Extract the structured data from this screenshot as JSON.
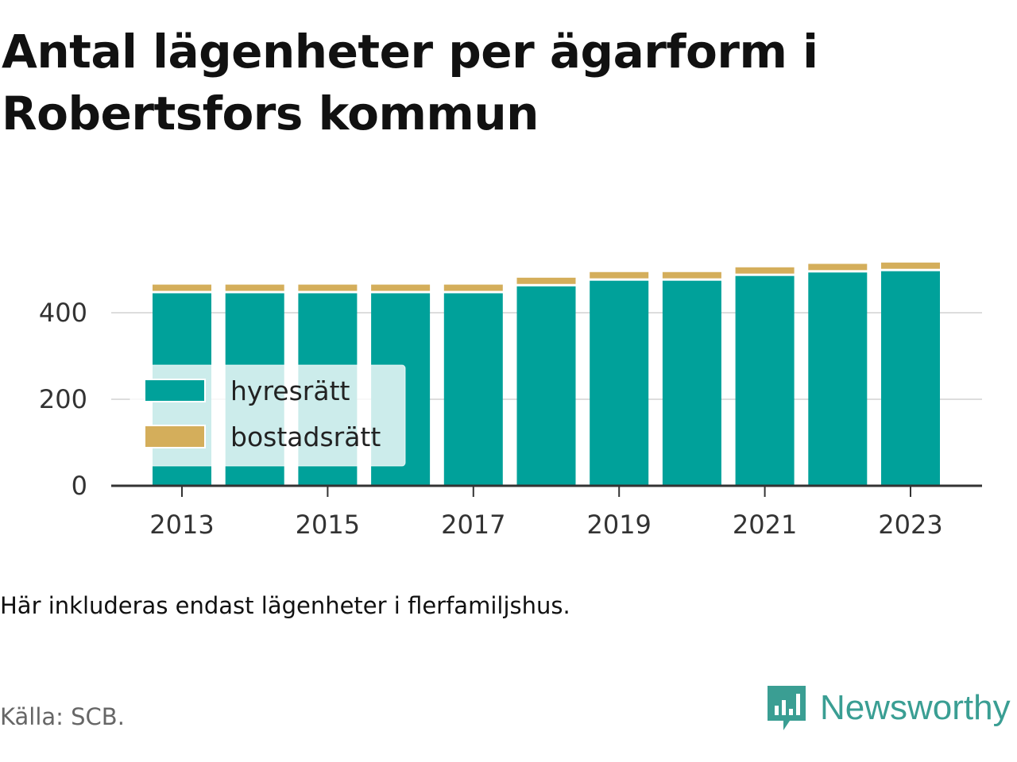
{
  "title": "Antal lägenheter per ägarform i Robertsfors kommun",
  "note": "Här inkluderas endast lägenheter i flerfamiljshus.",
  "source": "Källa: SCB.",
  "brand": {
    "name": "Newsworthy",
    "icon": "newsworthy-logo-icon",
    "color": "#3a9e93"
  },
  "colors": {
    "hyresratt": "#00a19a",
    "bostadsratt": "#d4ae5b",
    "grid": "#dddddd",
    "axis": "#333333"
  },
  "chart_data": {
    "type": "bar",
    "stacked": true,
    "title": "Antal lägenheter per ägarform i Robertsfors kommun",
    "xlabel": "",
    "ylabel": "",
    "categories": [
      "2013",
      "2014",
      "2015",
      "2016",
      "2017",
      "2018",
      "2019",
      "2020",
      "2021",
      "2022",
      "2023"
    ],
    "x_tick_labels": [
      "2013",
      "2015",
      "2017",
      "2019",
      "2021",
      "2023"
    ],
    "y_ticks": [
      0,
      200,
      400
    ],
    "ylim": [
      0,
      560
    ],
    "grid": "horizontal",
    "legend": "middle-left, inside plot",
    "series": [
      {
        "name": "hyresrätt",
        "color": "#00a19a",
        "values": [
          445,
          445,
          445,
          445,
          445,
          461,
          474,
          474,
          485,
          493,
          496
        ]
      },
      {
        "name": "bostadsrätt",
        "color": "#d4ae5b",
        "values": [
          20,
          20,
          20,
          20,
          20,
          20,
          20,
          20,
          20,
          20,
          20
        ]
      }
    ]
  }
}
